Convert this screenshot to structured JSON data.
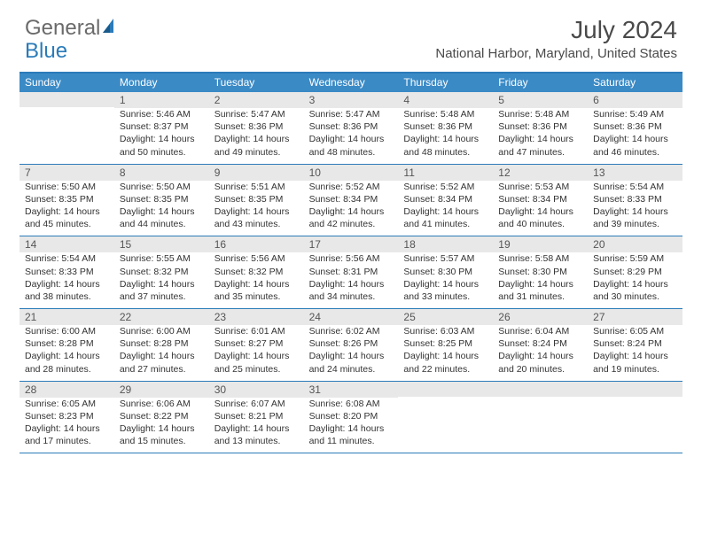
{
  "logo": {
    "text1": "General",
    "text2": "Blue"
  },
  "title": {
    "month": "July 2024",
    "location": "National Harbor, Maryland, United States"
  },
  "colors": {
    "header_blue": "#3a8ac6",
    "rule_blue": "#2b7bb9",
    "daynum_bg": "#e8e8e8",
    "text_dark": "#333333",
    "text_header": "#4a4a4a"
  },
  "days_of_week": [
    "Sunday",
    "Monday",
    "Tuesday",
    "Wednesday",
    "Thursday",
    "Friday",
    "Saturday"
  ],
  "weeks": [
    [
      {
        "n": "",
        "sr": "",
        "ss": "",
        "dl1": "",
        "dl2": ""
      },
      {
        "n": "1",
        "sr": "Sunrise: 5:46 AM",
        "ss": "Sunset: 8:37 PM",
        "dl1": "Daylight: 14 hours",
        "dl2": "and 50 minutes."
      },
      {
        "n": "2",
        "sr": "Sunrise: 5:47 AM",
        "ss": "Sunset: 8:36 PM",
        "dl1": "Daylight: 14 hours",
        "dl2": "and 49 minutes."
      },
      {
        "n": "3",
        "sr": "Sunrise: 5:47 AM",
        "ss": "Sunset: 8:36 PM",
        "dl1": "Daylight: 14 hours",
        "dl2": "and 48 minutes."
      },
      {
        "n": "4",
        "sr": "Sunrise: 5:48 AM",
        "ss": "Sunset: 8:36 PM",
        "dl1": "Daylight: 14 hours",
        "dl2": "and 48 minutes."
      },
      {
        "n": "5",
        "sr": "Sunrise: 5:48 AM",
        "ss": "Sunset: 8:36 PM",
        "dl1": "Daylight: 14 hours",
        "dl2": "and 47 minutes."
      },
      {
        "n": "6",
        "sr": "Sunrise: 5:49 AM",
        "ss": "Sunset: 8:36 PM",
        "dl1": "Daylight: 14 hours",
        "dl2": "and 46 minutes."
      }
    ],
    [
      {
        "n": "7",
        "sr": "Sunrise: 5:50 AM",
        "ss": "Sunset: 8:35 PM",
        "dl1": "Daylight: 14 hours",
        "dl2": "and 45 minutes."
      },
      {
        "n": "8",
        "sr": "Sunrise: 5:50 AM",
        "ss": "Sunset: 8:35 PM",
        "dl1": "Daylight: 14 hours",
        "dl2": "and 44 minutes."
      },
      {
        "n": "9",
        "sr": "Sunrise: 5:51 AM",
        "ss": "Sunset: 8:35 PM",
        "dl1": "Daylight: 14 hours",
        "dl2": "and 43 minutes."
      },
      {
        "n": "10",
        "sr": "Sunrise: 5:52 AM",
        "ss": "Sunset: 8:34 PM",
        "dl1": "Daylight: 14 hours",
        "dl2": "and 42 minutes."
      },
      {
        "n": "11",
        "sr": "Sunrise: 5:52 AM",
        "ss": "Sunset: 8:34 PM",
        "dl1": "Daylight: 14 hours",
        "dl2": "and 41 minutes."
      },
      {
        "n": "12",
        "sr": "Sunrise: 5:53 AM",
        "ss": "Sunset: 8:34 PM",
        "dl1": "Daylight: 14 hours",
        "dl2": "and 40 minutes."
      },
      {
        "n": "13",
        "sr": "Sunrise: 5:54 AM",
        "ss": "Sunset: 8:33 PM",
        "dl1": "Daylight: 14 hours",
        "dl2": "and 39 minutes."
      }
    ],
    [
      {
        "n": "14",
        "sr": "Sunrise: 5:54 AM",
        "ss": "Sunset: 8:33 PM",
        "dl1": "Daylight: 14 hours",
        "dl2": "and 38 minutes."
      },
      {
        "n": "15",
        "sr": "Sunrise: 5:55 AM",
        "ss": "Sunset: 8:32 PM",
        "dl1": "Daylight: 14 hours",
        "dl2": "and 37 minutes."
      },
      {
        "n": "16",
        "sr": "Sunrise: 5:56 AM",
        "ss": "Sunset: 8:32 PM",
        "dl1": "Daylight: 14 hours",
        "dl2": "and 35 minutes."
      },
      {
        "n": "17",
        "sr": "Sunrise: 5:56 AM",
        "ss": "Sunset: 8:31 PM",
        "dl1": "Daylight: 14 hours",
        "dl2": "and 34 minutes."
      },
      {
        "n": "18",
        "sr": "Sunrise: 5:57 AM",
        "ss": "Sunset: 8:30 PM",
        "dl1": "Daylight: 14 hours",
        "dl2": "and 33 minutes."
      },
      {
        "n": "19",
        "sr": "Sunrise: 5:58 AM",
        "ss": "Sunset: 8:30 PM",
        "dl1": "Daylight: 14 hours",
        "dl2": "and 31 minutes."
      },
      {
        "n": "20",
        "sr": "Sunrise: 5:59 AM",
        "ss": "Sunset: 8:29 PM",
        "dl1": "Daylight: 14 hours",
        "dl2": "and 30 minutes."
      }
    ],
    [
      {
        "n": "21",
        "sr": "Sunrise: 6:00 AM",
        "ss": "Sunset: 8:28 PM",
        "dl1": "Daylight: 14 hours",
        "dl2": "and 28 minutes."
      },
      {
        "n": "22",
        "sr": "Sunrise: 6:00 AM",
        "ss": "Sunset: 8:28 PM",
        "dl1": "Daylight: 14 hours",
        "dl2": "and 27 minutes."
      },
      {
        "n": "23",
        "sr": "Sunrise: 6:01 AM",
        "ss": "Sunset: 8:27 PM",
        "dl1": "Daylight: 14 hours",
        "dl2": "and 25 minutes."
      },
      {
        "n": "24",
        "sr": "Sunrise: 6:02 AM",
        "ss": "Sunset: 8:26 PM",
        "dl1": "Daylight: 14 hours",
        "dl2": "and 24 minutes."
      },
      {
        "n": "25",
        "sr": "Sunrise: 6:03 AM",
        "ss": "Sunset: 8:25 PM",
        "dl1": "Daylight: 14 hours",
        "dl2": "and 22 minutes."
      },
      {
        "n": "26",
        "sr": "Sunrise: 6:04 AM",
        "ss": "Sunset: 8:24 PM",
        "dl1": "Daylight: 14 hours",
        "dl2": "and 20 minutes."
      },
      {
        "n": "27",
        "sr": "Sunrise: 6:05 AM",
        "ss": "Sunset: 8:24 PM",
        "dl1": "Daylight: 14 hours",
        "dl2": "and 19 minutes."
      }
    ],
    [
      {
        "n": "28",
        "sr": "Sunrise: 6:05 AM",
        "ss": "Sunset: 8:23 PM",
        "dl1": "Daylight: 14 hours",
        "dl2": "and 17 minutes."
      },
      {
        "n": "29",
        "sr": "Sunrise: 6:06 AM",
        "ss": "Sunset: 8:22 PM",
        "dl1": "Daylight: 14 hours",
        "dl2": "and 15 minutes."
      },
      {
        "n": "30",
        "sr": "Sunrise: 6:07 AM",
        "ss": "Sunset: 8:21 PM",
        "dl1": "Daylight: 14 hours",
        "dl2": "and 13 minutes."
      },
      {
        "n": "31",
        "sr": "Sunrise: 6:08 AM",
        "ss": "Sunset: 8:20 PM",
        "dl1": "Daylight: 14 hours",
        "dl2": "and 11 minutes."
      },
      {
        "n": "",
        "sr": "",
        "ss": "",
        "dl1": "",
        "dl2": ""
      },
      {
        "n": "",
        "sr": "",
        "ss": "",
        "dl1": "",
        "dl2": ""
      },
      {
        "n": "",
        "sr": "",
        "ss": "",
        "dl1": "",
        "dl2": ""
      }
    ]
  ]
}
